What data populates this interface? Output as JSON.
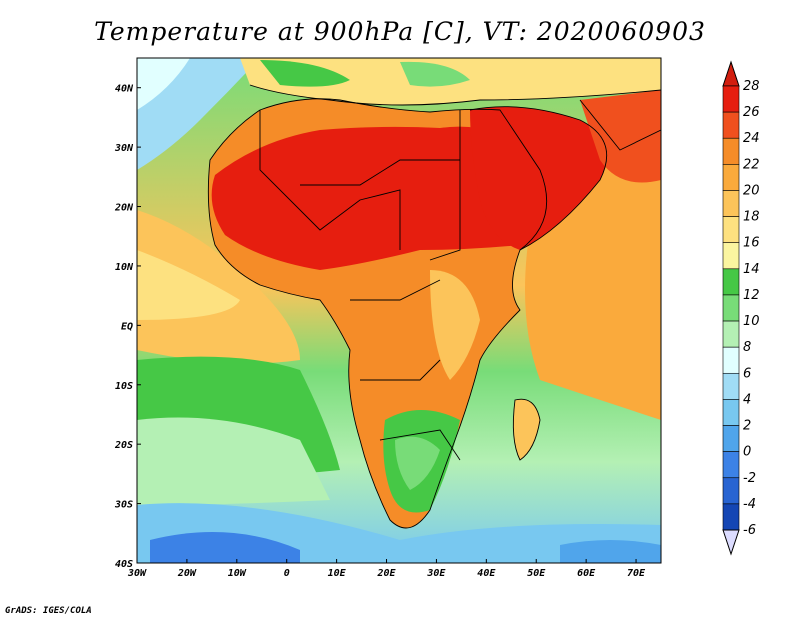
{
  "map": {
    "title": "Temperature at 900hPa [C], VT: 2020060903",
    "credit": "GrADS: IGES/COLA",
    "lon_ticks": [
      "30W",
      "20W",
      "10W",
      "0",
      "10E",
      "20E",
      "30E",
      "40E",
      "50E",
      "60E",
      "70E"
    ],
    "lat_ticks": [
      "40N",
      "30N",
      "20N",
      "10N",
      "EQ",
      "10S",
      "20S",
      "30S",
      "40S"
    ],
    "extent": {
      "lon_min": -30,
      "lon_max": 75,
      "lat_min": -40,
      "lat_max": 45
    },
    "land_mask_color": "#ffffff",
    "colorbar": {
      "labels": [
        "28",
        "26",
        "24",
        "22",
        "20",
        "18",
        "16",
        "14",
        "12",
        "10",
        "8",
        "6",
        "4",
        "2",
        "0",
        "-2",
        "-4",
        "-6"
      ],
      "colors": [
        "#e61e0f",
        "#f0501e",
        "#f58c28",
        "#faaa3c",
        "#fcc45a",
        "#fde180",
        "#fbf5a0",
        "#46c846",
        "#78dc78",
        "#b4f0b4",
        "#e1ffff",
        "#a0dcf5",
        "#78c8f0",
        "#50a5eb",
        "#3c82e6",
        "#2864d2",
        "#1446b4",
        "#0a1e78"
      ]
    }
  }
}
